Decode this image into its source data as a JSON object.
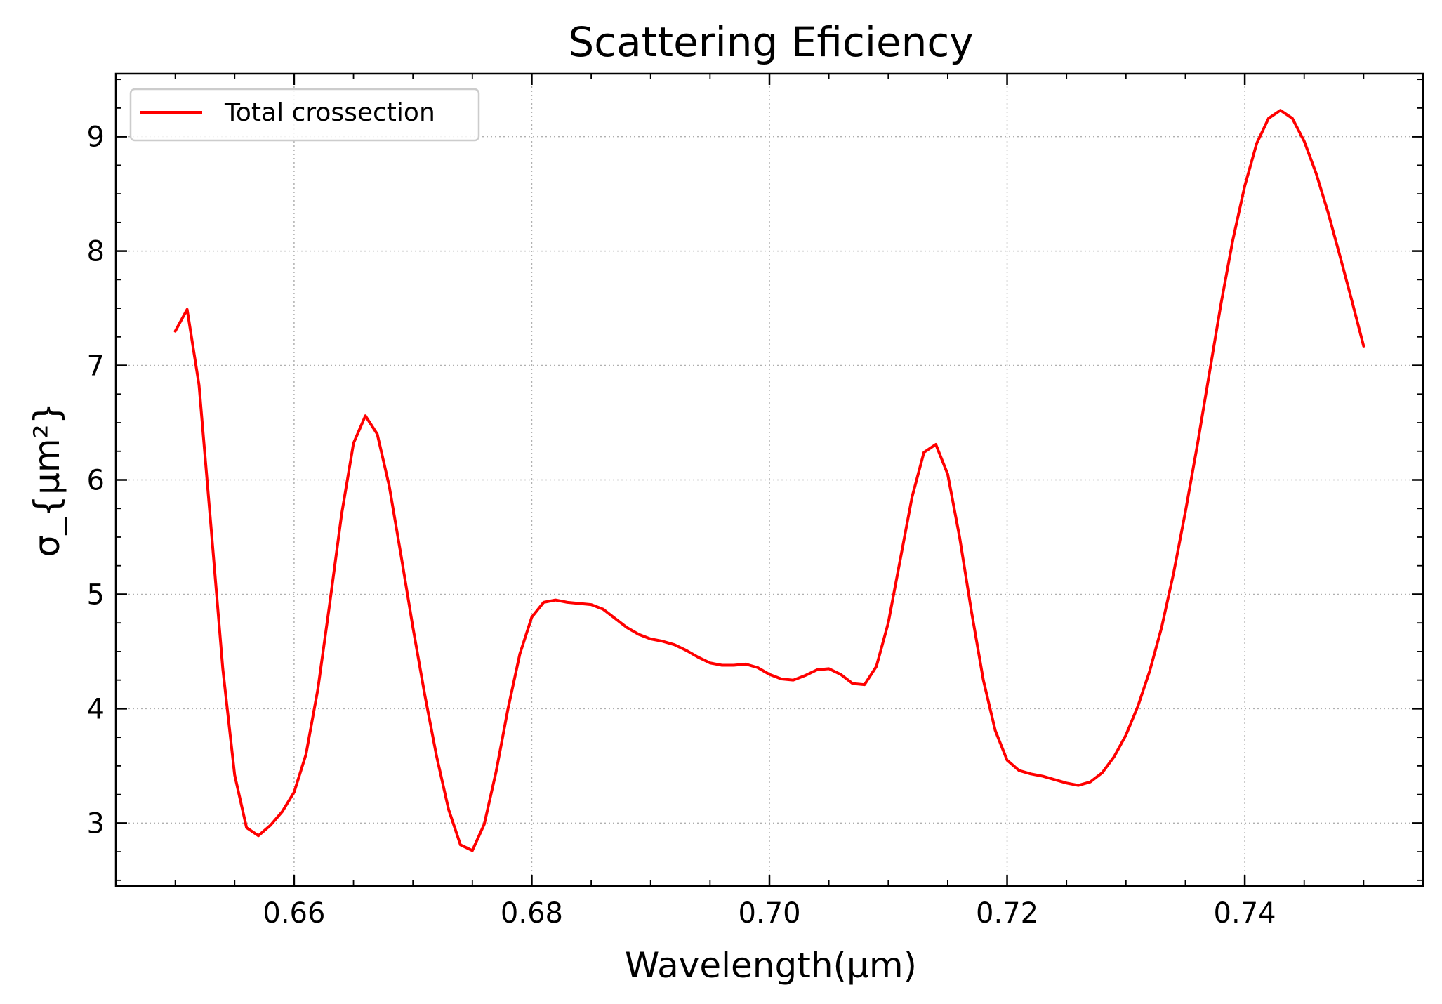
{
  "chart_data": {
    "type": "line",
    "title": "Scattering Eficiency",
    "xlabel": "Wavelength(μm)",
    "ylabel": "σ_{μm²}",
    "xlim": [
      0.645,
      0.755
    ],
    "ylim": [
      2.45,
      9.55
    ],
    "x_ticks": [
      0.66,
      0.68,
      0.7,
      0.72,
      0.74
    ],
    "x_tick_labels": [
      "0.66",
      "0.68",
      "0.70",
      "0.72",
      "0.74"
    ],
    "y_ticks": [
      3,
      4,
      5,
      6,
      7,
      8,
      9
    ],
    "y_tick_labels": [
      "3",
      "4",
      "5",
      "6",
      "7",
      "8",
      "9"
    ],
    "grid": true,
    "legend_position": "top-left",
    "colors": {
      "series": "#ff0000",
      "grid": "#b0b0b0",
      "axes": "#000000"
    },
    "series": [
      {
        "name": "Total crossection",
        "x": [
          0.65,
          0.651,
          0.652,
          0.653,
          0.654,
          0.655,
          0.656,
          0.657,
          0.658,
          0.659,
          0.66,
          0.661,
          0.662,
          0.663,
          0.664,
          0.665,
          0.666,
          0.667,
          0.668,
          0.669,
          0.67,
          0.671,
          0.672,
          0.673,
          0.674,
          0.675,
          0.676,
          0.677,
          0.678,
          0.679,
          0.68,
          0.681,
          0.682,
          0.683,
          0.684,
          0.685,
          0.686,
          0.687,
          0.688,
          0.689,
          0.69,
          0.691,
          0.692,
          0.693,
          0.694,
          0.695,
          0.696,
          0.697,
          0.698,
          0.699,
          0.7,
          0.701,
          0.702,
          0.703,
          0.704,
          0.705,
          0.706,
          0.707,
          0.708,
          0.709,
          0.71,
          0.711,
          0.712,
          0.713,
          0.714,
          0.715,
          0.716,
          0.717,
          0.718,
          0.719,
          0.72,
          0.721,
          0.722,
          0.723,
          0.724,
          0.725,
          0.726,
          0.727,
          0.728,
          0.729,
          0.73,
          0.731,
          0.732,
          0.733,
          0.734,
          0.735,
          0.736,
          0.737,
          0.738,
          0.739,
          0.74,
          0.741,
          0.742,
          0.743,
          0.744,
          0.745,
          0.746,
          0.747,
          0.748,
          0.749,
          0.75
        ],
        "y": [
          7.3,
          7.49,
          6.83,
          5.6,
          4.35,
          3.42,
          2.96,
          2.89,
          2.98,
          3.1,
          3.27,
          3.6,
          4.17,
          4.92,
          5.7,
          6.32,
          6.56,
          6.4,
          5.95,
          5.34,
          4.71,
          4.12,
          3.58,
          3.12,
          2.81,
          2.76,
          2.99,
          3.45,
          4.0,
          4.48,
          4.8,
          4.93,
          4.95,
          4.93,
          4.92,
          4.91,
          4.87,
          4.79,
          4.71,
          4.65,
          4.61,
          4.59,
          4.56,
          4.51,
          4.45,
          4.4,
          4.38,
          4.38,
          4.39,
          4.36,
          4.3,
          4.26,
          4.25,
          4.29,
          4.34,
          4.35,
          4.3,
          4.22,
          4.21,
          4.37,
          4.75,
          5.3,
          5.85,
          6.24,
          6.31,
          6.05,
          5.5,
          4.85,
          4.25,
          3.81,
          3.55,
          3.46,
          3.43,
          3.41,
          3.38,
          3.35,
          3.33,
          3.36,
          3.44,
          3.58,
          3.77,
          4.02,
          4.33,
          4.71,
          5.18,
          5.72,
          6.3,
          6.92,
          7.54,
          8.1,
          8.57,
          8.94,
          9.16,
          9.23,
          9.16,
          8.96,
          8.68,
          8.34,
          7.96,
          7.57,
          7.17
        ]
      }
    ]
  }
}
